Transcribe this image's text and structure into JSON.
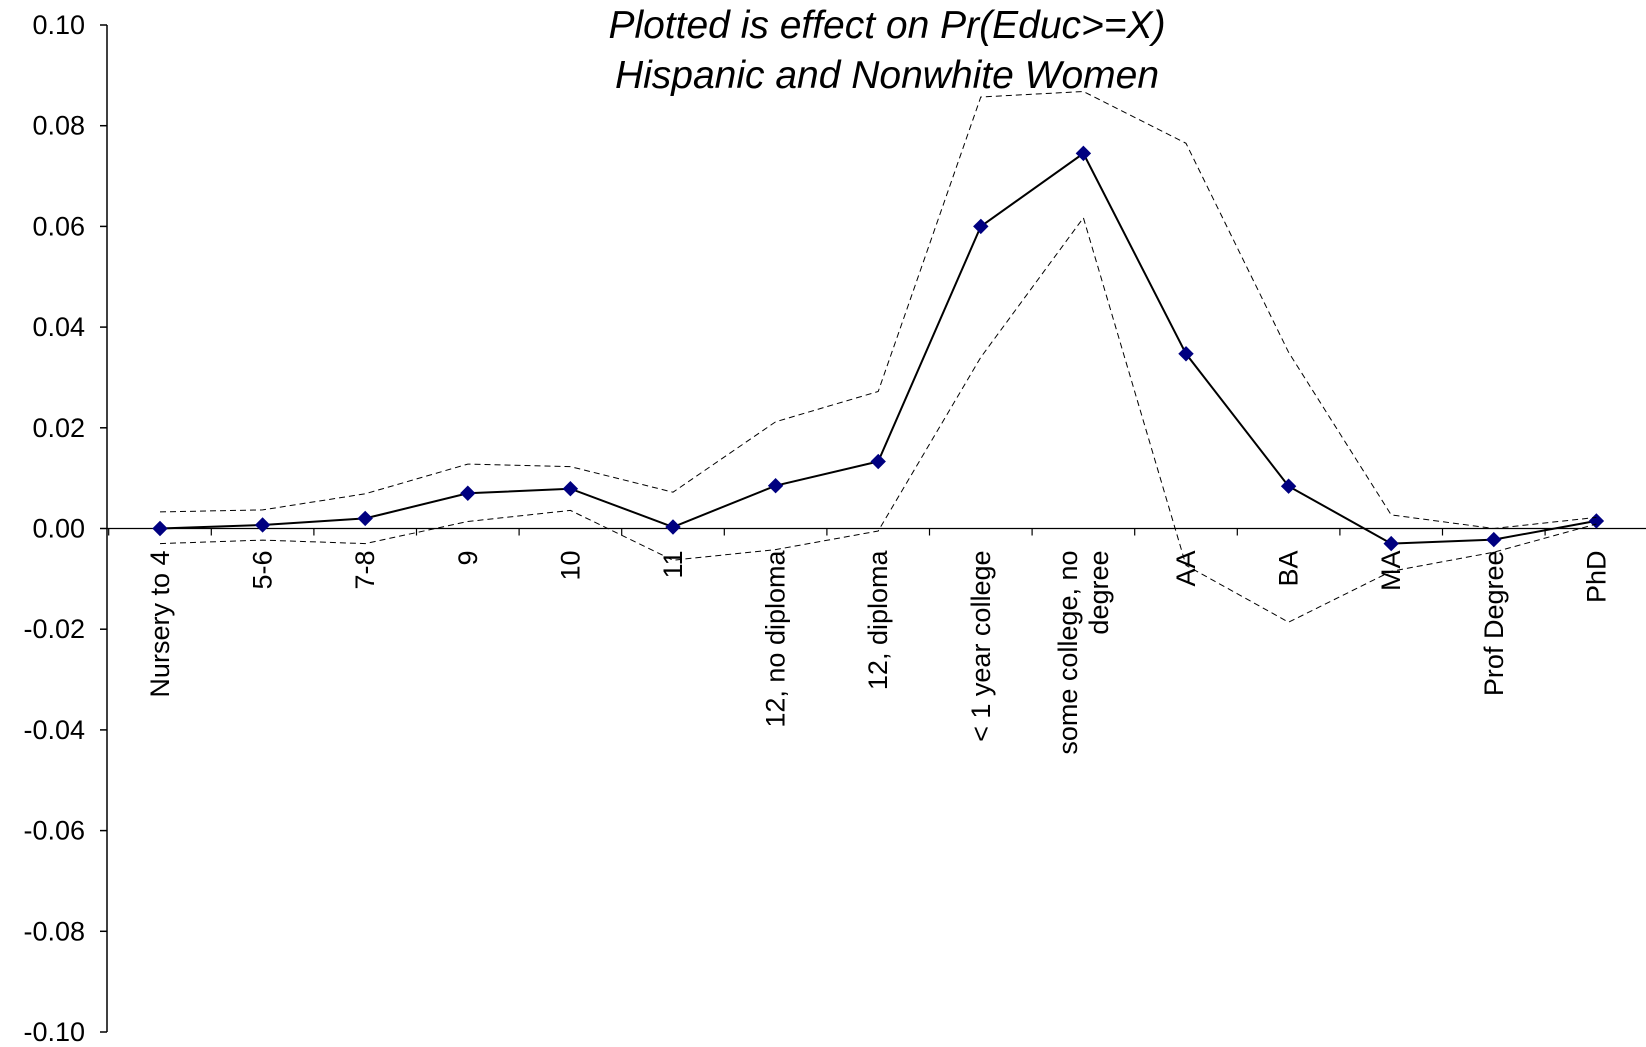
{
  "chart_data": {
    "type": "line",
    "title": "Plotted is effect on Pr(Educ>=X)",
    "subtitle": "Hispanic and Nonwhite Women",
    "xlabel": "",
    "ylabel": "",
    "ylim": [
      -0.1,
      0.1
    ],
    "y_ticks": [
      "0.10",
      "0.08",
      "0.06",
      "0.04",
      "0.02",
      "0.00",
      "-0.02",
      "-0.04",
      "-0.06",
      "-0.08",
      "-0.10"
    ],
    "categories": [
      [
        "Nursery to 4"
      ],
      [
        "5-6"
      ],
      [
        "7-8"
      ],
      [
        "9"
      ],
      [
        "10"
      ],
      [
        "11"
      ],
      [
        "12, no diploma"
      ],
      [
        "12, diploma"
      ],
      [
        "< 1 year college"
      ],
      [
        "some college, no",
        "degree"
      ],
      [
        "AA"
      ],
      [
        "BA"
      ],
      [
        "MA"
      ],
      [
        "Prof Degree"
      ],
      [
        "PhD"
      ]
    ],
    "grid": false,
    "series": [
      {
        "style": "solid-marker",
        "color": "#000000",
        "marker_color": "#000080",
        "values": [
          0.0,
          0.0007,
          0.002,
          0.007,
          0.0079,
          0.0003,
          0.0085,
          0.0133,
          0.06,
          0.0745,
          0.0347,
          0.0084,
          -0.003,
          -0.0022,
          0.0015
        ]
      },
      {
        "style": "dashed",
        "color": "#000000",
        "values": [
          0.0033,
          0.0037,
          0.0069,
          0.0128,
          0.0123,
          0.0072,
          0.0212,
          0.0272,
          0.0857,
          0.0868,
          0.0765,
          0.035,
          0.0027,
          0.0,
          0.0022
        ]
      },
      {
        "style": "dashed",
        "color": "#000000",
        "values": [
          -0.003,
          -0.0023,
          -0.003,
          0.0014,
          0.0036,
          -0.0063,
          -0.0042,
          -0.0005,
          0.034,
          0.0617,
          -0.0073,
          -0.0186,
          -0.0085,
          -0.0047,
          0.0009
        ]
      }
    ]
  }
}
